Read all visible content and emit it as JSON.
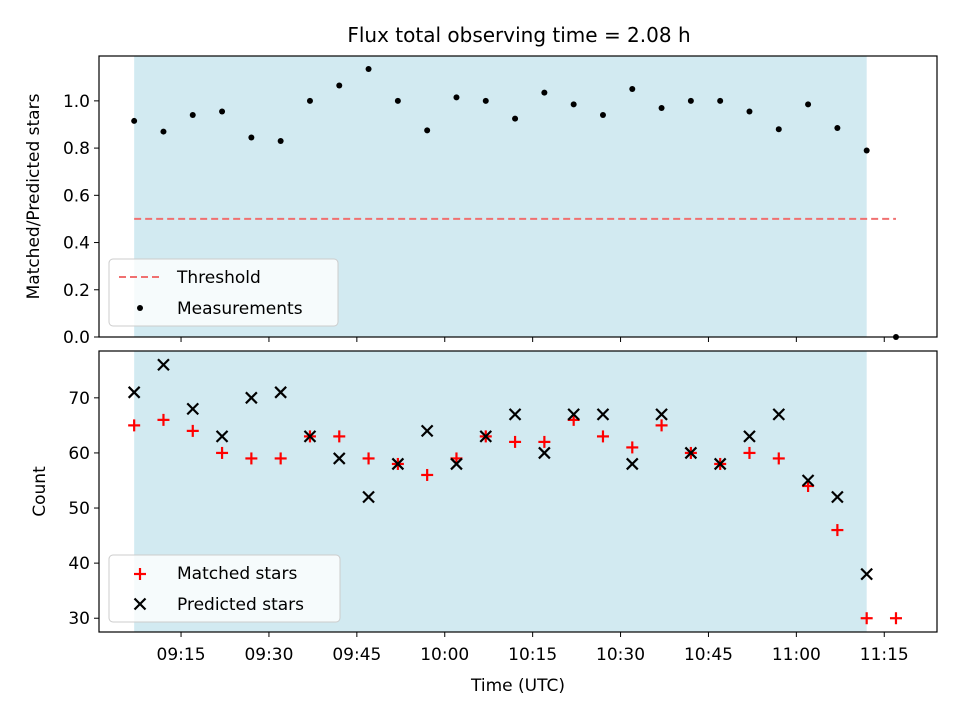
{
  "chart_data": [
    {
      "type": "scatter",
      "title": "Flux total observing time = 2.08 h",
      "xlabel": "",
      "ylabel": "Matched/Predicted stars",
      "ylim": [
        0,
        1.19
      ],
      "yticks": [
        "0.0",
        "0.2",
        "0.4",
        "0.6",
        "0.8",
        "1.0"
      ],
      "x_is_time": true,
      "shaded_span": {
        "start": "09:07",
        "end": "11:12",
        "color": "#add8e6"
      },
      "threshold": {
        "name": "Threshold",
        "value": 0.5,
        "x_start": "09:07",
        "x_end": "11:17",
        "color": "#f07070",
        "style": "dashed"
      },
      "series": [
        {
          "name": "Measurements",
          "marker": "dot",
          "color": "#000000",
          "x": [
            "09:07",
            "09:12",
            "09:17",
            "09:22",
            "09:27",
            "09:32",
            "09:37",
            "09:42",
            "09:47",
            "09:52",
            "09:57",
            "10:02",
            "10:07",
            "10:12",
            "10:17",
            "10:22",
            "10:27",
            "10:32",
            "10:37",
            "10:42",
            "10:47",
            "10:52",
            "10:57",
            "11:02",
            "11:07",
            "11:12",
            "11:17"
          ],
          "y": [
            0.915,
            0.87,
            0.94,
            0.955,
            0.845,
            0.83,
            1.0,
            1.065,
            1.135,
            1.0,
            0.875,
            1.015,
            1.0,
            0.925,
            1.035,
            0.985,
            0.94,
            1.05,
            0.97,
            1.0,
            1.0,
            0.955,
            0.88,
            0.985,
            0.885,
            0.79,
            0.0
          ]
        }
      ],
      "legend": {
        "position": "lower-left",
        "entries": [
          "Threshold",
          "Measurements"
        ]
      }
    },
    {
      "type": "scatter",
      "title": "",
      "xlabel": "Time (UTC)",
      "ylabel": "Count",
      "ylim": [
        27.5,
        78.5
      ],
      "yticks": [
        "30",
        "40",
        "50",
        "60",
        "70"
      ],
      "xticks": [
        "09:15",
        "09:30",
        "09:45",
        "10:00",
        "10:15",
        "10:30",
        "10:45",
        "11:00",
        "11:15"
      ],
      "x_is_time": true,
      "xlim": [
        "09:01",
        "11:24"
      ],
      "shaded_span": {
        "start": "09:07",
        "end": "11:12",
        "color": "#add8e6"
      },
      "series": [
        {
          "name": "Matched stars",
          "marker": "plus",
          "color": "#ff0000",
          "x": [
            "09:07",
            "09:12",
            "09:17",
            "09:22",
            "09:27",
            "09:32",
            "09:37",
            "09:42",
            "09:47",
            "09:52",
            "09:57",
            "10:02",
            "10:07",
            "10:12",
            "10:17",
            "10:22",
            "10:27",
            "10:32",
            "10:37",
            "10:42",
            "10:47",
            "10:52",
            "10:57",
            "11:02",
            "11:07",
            "11:12",
            "11:17"
          ],
          "y": [
            65,
            66,
            64,
            60,
            59,
            59,
            63,
            63,
            59,
            58,
            56,
            59,
            63,
            62,
            62,
            66,
            63,
            61,
            65,
            60,
            58,
            60,
            59,
            54,
            46,
            30,
            30
          ]
        },
        {
          "name": "Predicted stars",
          "marker": "x",
          "color": "#000000",
          "x": [
            "09:07",
            "09:12",
            "09:17",
            "09:22",
            "09:27",
            "09:32",
            "09:37",
            "09:42",
            "09:47",
            "09:52",
            "09:57",
            "10:02",
            "10:07",
            "10:12",
            "10:17",
            "10:22",
            "10:27",
            "10:32",
            "10:37",
            "10:42",
            "10:47",
            "10:52",
            "10:57",
            "11:02",
            "11:07",
            "11:12"
          ],
          "y": [
            71,
            76,
            68,
            63,
            70,
            71,
            63,
            59,
            52,
            58,
            64,
            58,
            63,
            67,
            60,
            67,
            67,
            58,
            67,
            60,
            58,
            63,
            67,
            55,
            52,
            38
          ]
        }
      ],
      "legend": {
        "position": "lower-left",
        "entries": [
          "Matched stars",
          "Predicted stars"
        ]
      }
    }
  ]
}
